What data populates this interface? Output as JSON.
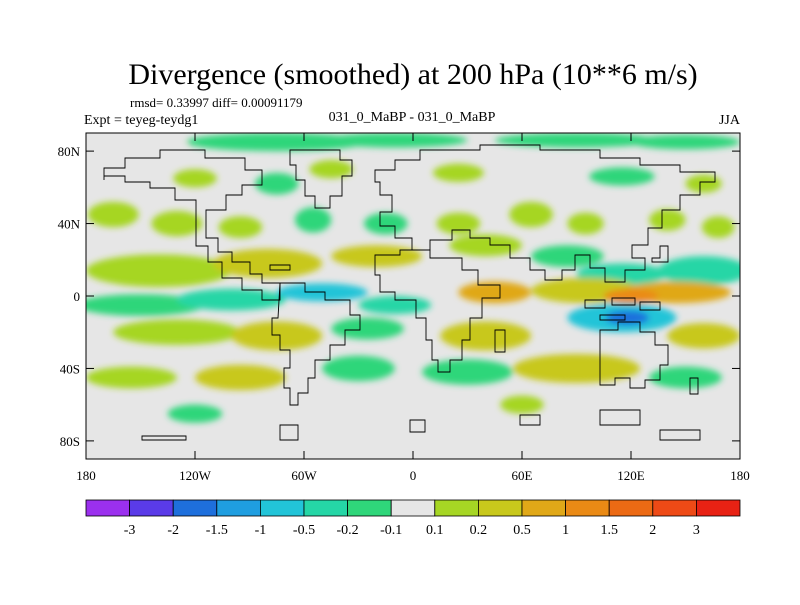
{
  "chart_data": {
    "type": "heatmap",
    "title": "Divergence (smoothed) at 200 hPa (10**6 m/s)",
    "stats": "rmsd= 0.33997 diff= 0.00091179",
    "experiment": "Expt = teyeg-teydg1",
    "comparison": "031_0_MaBP - 031_0_MaBP",
    "season": "JJA",
    "x_axis": {
      "range": [
        -180,
        180
      ],
      "ticks": [
        {
          "value": -180,
          "label": "180"
        },
        {
          "value": -120,
          "label": "120W"
        },
        {
          "value": -60,
          "label": "60W"
        },
        {
          "value": 0,
          "label": "0"
        },
        {
          "value": 60,
          "label": "60E"
        },
        {
          "value": 120,
          "label": "120E"
        },
        {
          "value": 180,
          "label": "180"
        }
      ]
    },
    "y_axis": {
      "range": [
        -90,
        90
      ],
      "ticks": [
        {
          "value": 80,
          "label": "80N"
        },
        {
          "value": 40,
          "label": "40N"
        },
        {
          "value": 0,
          "label": "0"
        },
        {
          "value": -40,
          "label": "40S"
        },
        {
          "value": -80,
          "label": "80S"
        }
      ]
    },
    "colorbar": {
      "levels": [
        "-3",
        "-2",
        "-1.5",
        "-1",
        "-0.5",
        "-0.2",
        "-0.1",
        "0.1",
        "0.2",
        "0.5",
        "1",
        "1.5",
        "2",
        "3"
      ],
      "colors": [
        "#9b30ee",
        "#5a3be8",
        "#1e6fdc",
        "#1f9ee0",
        "#22c4d8",
        "#25d6a6",
        "#2fd67a",
        "#e6e6e6",
        "#a6d624",
        "#c8c81c",
        "#e0a818",
        "#ea8a15",
        "#ec6a14",
        "#ee4a16",
        "#e82214"
      ]
    },
    "features": [
      {
        "lon": -155,
        "lat": 83,
        "w": 30,
        "h": 4,
        "cat": 7
      },
      {
        "lon": -75,
        "lat": 85,
        "w": 50,
        "h": 5,
        "cat": 6
      },
      {
        "lon": -10,
        "lat": 86,
        "w": 40,
        "h": 4,
        "cat": 6
      },
      {
        "lon": 90,
        "lat": 86,
        "w": 45,
        "h": 4,
        "cat": 6
      },
      {
        "lon": 150,
        "lat": 85,
        "w": 30,
        "h": 4,
        "cat": 6
      },
      {
        "lon": -120,
        "lat": 65,
        "w": 12,
        "h": 5,
        "cat": 8
      },
      {
        "lon": -75,
        "lat": 62,
        "w": 12,
        "h": 6,
        "cat": 6
      },
      {
        "lon": -45,
        "lat": 70,
        "w": 12,
        "h": 5,
        "cat": 8
      },
      {
        "lon": 25,
        "lat": 68,
        "w": 14,
        "h": 5,
        "cat": 8
      },
      {
        "lon": 115,
        "lat": 66,
        "w": 18,
        "h": 5,
        "cat": 6
      },
      {
        "lon": 160,
        "lat": 62,
        "w": 10,
        "h": 5,
        "cat": 8
      },
      {
        "lon": -165,
        "lat": 45,
        "w": 14,
        "h": 7,
        "cat": 8
      },
      {
        "lon": -130,
        "lat": 40,
        "w": 14,
        "h": 7,
        "cat": 8
      },
      {
        "lon": -95,
        "lat": 38,
        "w": 12,
        "h": 6,
        "cat": 8
      },
      {
        "lon": -55,
        "lat": 42,
        "w": 10,
        "h": 7,
        "cat": 6
      },
      {
        "lon": -15,
        "lat": 40,
        "w": 12,
        "h": 6,
        "cat": 6
      },
      {
        "lon": 25,
        "lat": 40,
        "w": 12,
        "h": 6,
        "cat": 8
      },
      {
        "lon": 65,
        "lat": 45,
        "w": 12,
        "h": 7,
        "cat": 8
      },
      {
        "lon": 95,
        "lat": 40,
        "w": 10,
        "h": 6,
        "cat": 8
      },
      {
        "lon": 140,
        "lat": 42,
        "w": 10,
        "h": 6,
        "cat": 8
      },
      {
        "lon": 168,
        "lat": 38,
        "w": 9,
        "h": 6,
        "cat": 8
      },
      {
        "lon": -140,
        "lat": 14,
        "w": 40,
        "h": 9,
        "cat": 8
      },
      {
        "lon": -80,
        "lat": 18,
        "w": 30,
        "h": 8,
        "cat": 9
      },
      {
        "lon": -20,
        "lat": 22,
        "w": 25,
        "h": 6,
        "cat": 9
      },
      {
        "lon": 40,
        "lat": 28,
        "w": 20,
        "h": 6,
        "cat": 8
      },
      {
        "lon": 85,
        "lat": 22,
        "w": 20,
        "h": 6,
        "cat": 6
      },
      {
        "lon": 115,
        "lat": 12,
        "w": 25,
        "h": 6,
        "cat": 5
      },
      {
        "lon": 160,
        "lat": 14,
        "w": 25,
        "h": 8,
        "cat": 5
      },
      {
        "lon": -150,
        "lat": -5,
        "w": 35,
        "h": 6,
        "cat": 6
      },
      {
        "lon": -100,
        "lat": -2,
        "w": 30,
        "h": 6,
        "cat": 5
      },
      {
        "lon": -50,
        "lat": 2,
        "w": 25,
        "h": 5,
        "cat": 4
      },
      {
        "lon": -10,
        "lat": -5,
        "w": 20,
        "h": 5,
        "cat": 5
      },
      {
        "lon": 45,
        "lat": 2,
        "w": 20,
        "h": 6,
        "cat": 10
      },
      {
        "lon": 95,
        "lat": 3,
        "w": 30,
        "h": 7,
        "cat": 9
      },
      {
        "lon": 145,
        "lat": 2,
        "w": 30,
        "h": 6,
        "cat": 10
      },
      {
        "lon": 120,
        "lat": 0,
        "w": 15,
        "h": 4,
        "cat": 11
      },
      {
        "lon": -130,
        "lat": -20,
        "w": 35,
        "h": 7,
        "cat": 8
      },
      {
        "lon": -75,
        "lat": -22,
        "w": 25,
        "h": 8,
        "cat": 9
      },
      {
        "lon": -25,
        "lat": -18,
        "w": 20,
        "h": 6,
        "cat": 6
      },
      {
        "lon": 40,
        "lat": -22,
        "w": 25,
        "h": 8,
        "cat": 9
      },
      {
        "lon": 115,
        "lat": -12,
        "w": 30,
        "h": 8,
        "cat": 4
      },
      {
        "lon": 118,
        "lat": -12,
        "w": 12,
        "h": 4,
        "cat": 2
      },
      {
        "lon": 160,
        "lat": -22,
        "w": 20,
        "h": 7,
        "cat": 9
      },
      {
        "lon": -155,
        "lat": -45,
        "w": 25,
        "h": 6,
        "cat": 8
      },
      {
        "lon": -95,
        "lat": -45,
        "w": 25,
        "h": 7,
        "cat": 9
      },
      {
        "lon": -30,
        "lat": -40,
        "w": 20,
        "h": 7,
        "cat": 6
      },
      {
        "lon": 30,
        "lat": -42,
        "w": 25,
        "h": 7,
        "cat": 6
      },
      {
        "lon": 90,
        "lat": -40,
        "w": 35,
        "h": 8,
        "cat": 9
      },
      {
        "lon": 150,
        "lat": -45,
        "w": 20,
        "h": 6,
        "cat": 6
      },
      {
        "lon": -120,
        "lat": -65,
        "w": 15,
        "h": 5,
        "cat": 6
      },
      {
        "lon": 60,
        "lat": -60,
        "w": 12,
        "h": 5,
        "cat": 8
      }
    ]
  }
}
